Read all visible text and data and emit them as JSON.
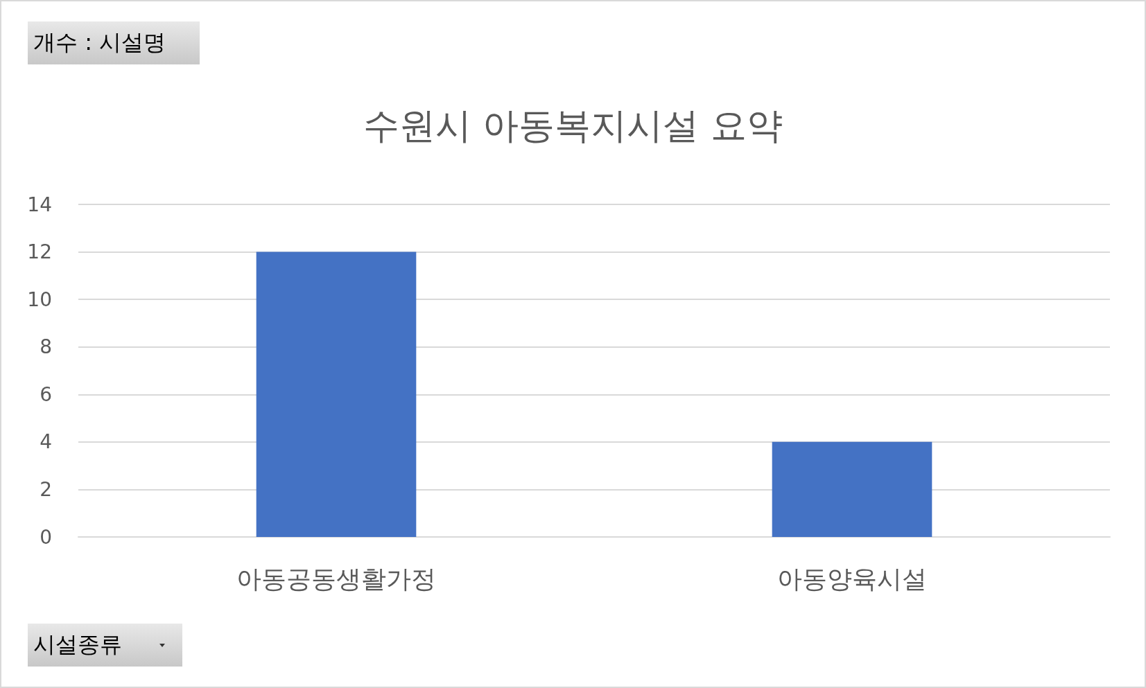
{
  "chart_data": {
    "type": "bar",
    "title": "수원시 아동복지시설 요약",
    "categories": [
      "아동공동생활가정",
      "아동양육시설"
    ],
    "values": [
      12,
      4
    ],
    "color": "#4472c4",
    "ylim": [
      0,
      14
    ],
    "yticks": [
      0,
      2,
      4,
      6,
      8,
      10,
      12,
      14
    ],
    "grid": "y",
    "annotations": [
      "개수 : 시설명",
      "시설종류"
    ]
  }
}
